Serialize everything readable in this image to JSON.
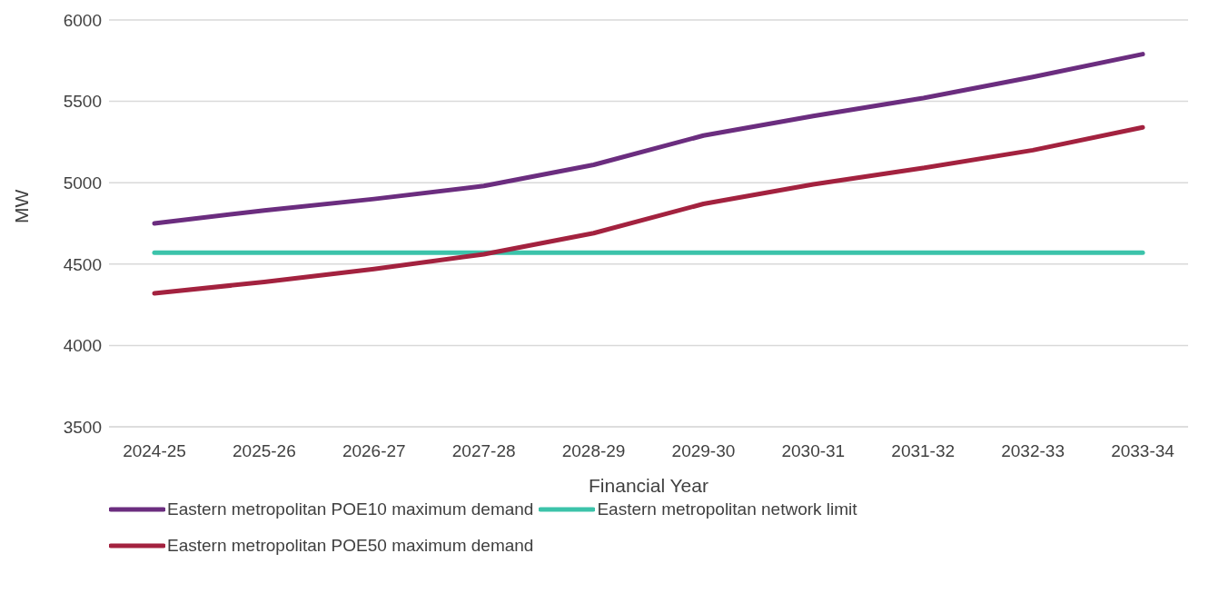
{
  "chart_data": {
    "type": "line",
    "xlabel": "Financial Year",
    "ylabel": "MW",
    "categories": [
      "2024-25",
      "2025-26",
      "2026-27",
      "2027-28",
      "2028-29",
      "2029-30",
      "2030-31",
      "2031-32",
      "2032-33",
      "2033-34"
    ],
    "series": [
      {
        "name": "Eastern metropolitan POE10 maximum demand",
        "color": "#6b2d7f",
        "values": [
          4750,
          4830,
          4900,
          4980,
          5110,
          5290,
          5410,
          5520,
          5650,
          5790
        ]
      },
      {
        "name": "Eastern metropolitan network limit",
        "color": "#3cc3aa",
        "values": [
          4570,
          4570,
          4570,
          4570,
          4570,
          4570,
          4570,
          4570,
          4570,
          4570
        ]
      },
      {
        "name": "Eastern metropolitan POE50 maximum demand",
        "color": "#a3223f",
        "values": [
          4320,
          4390,
          4470,
          4560,
          4690,
          4870,
          4990,
          5090,
          5200,
          5340
        ]
      }
    ],
    "ylim": [
      3500,
      6000
    ],
    "yticks": [
      3500,
      4000,
      4500,
      5000,
      5500,
      6000
    ],
    "grid": "y",
    "legend": "bottom",
    "marker": "none",
    "line_style": "solid"
  }
}
